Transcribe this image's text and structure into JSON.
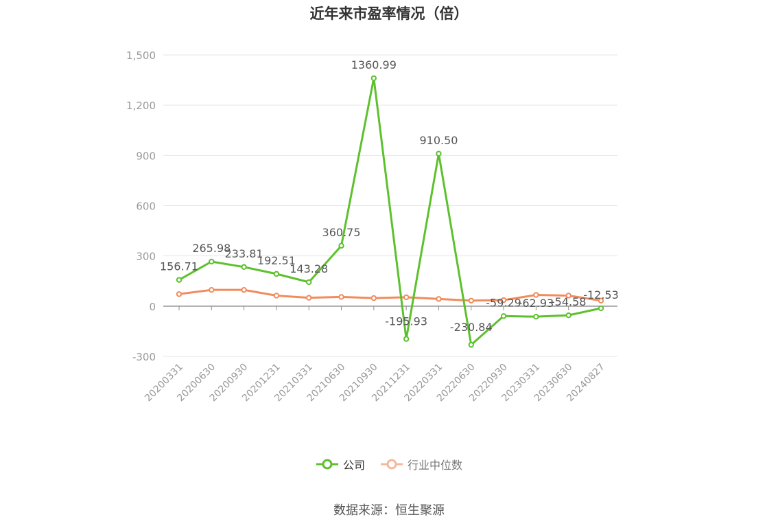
{
  "page": {
    "title": "近年来市盈率情况（倍）",
    "source": "数据来源：恒生聚源"
  },
  "chart_data": {
    "type": "line",
    "title": "近年来市盈率情况（倍）",
    "categories": [
      "20200331",
      "20200630",
      "20200930",
      "20201231",
      "20210331",
      "20210630",
      "20210930",
      "20211231",
      "20220331",
      "20220630",
      "20220930",
      "20230331",
      "20230630",
      "20240827"
    ],
    "series": [
      {
        "name": "公司",
        "color": "#5cc12d",
        "values": [
          156.71,
          265.98,
          233.81,
          192.51,
          143.28,
          360.75,
          1360.99,
          -195.93,
          910.5,
          -230.84,
          -59.29,
          -62.93,
          -54.58,
          -12.53
        ],
        "labels": [
          "156.71",
          "265.98",
          "233.81",
          "192.51",
          "143.28",
          "360.75",
          "1360.99",
          "-195.93",
          "910.50",
          "-230.84",
          "-59.29",
          "-62.93",
          "-54.58",
          "-12.53"
        ]
      },
      {
        "name": "行业中位数",
        "color": "#f28b5c",
        "values": [
          72,
          97,
          97,
          63,
          50,
          55,
          48,
          53,
          43,
          33,
          36,
          67,
          63,
          33
        ]
      }
    ],
    "y_ticks": [
      "1,500",
      "1,200",
      "900",
      "600",
      "300",
      "0",
      "-300"
    ],
    "y_tick_values": [
      1500,
      1200,
      900,
      600,
      300,
      0,
      -300
    ],
    "ylim": [
      -300,
      1500
    ],
    "grid": true,
    "legend_position": "bottom-center"
  }
}
